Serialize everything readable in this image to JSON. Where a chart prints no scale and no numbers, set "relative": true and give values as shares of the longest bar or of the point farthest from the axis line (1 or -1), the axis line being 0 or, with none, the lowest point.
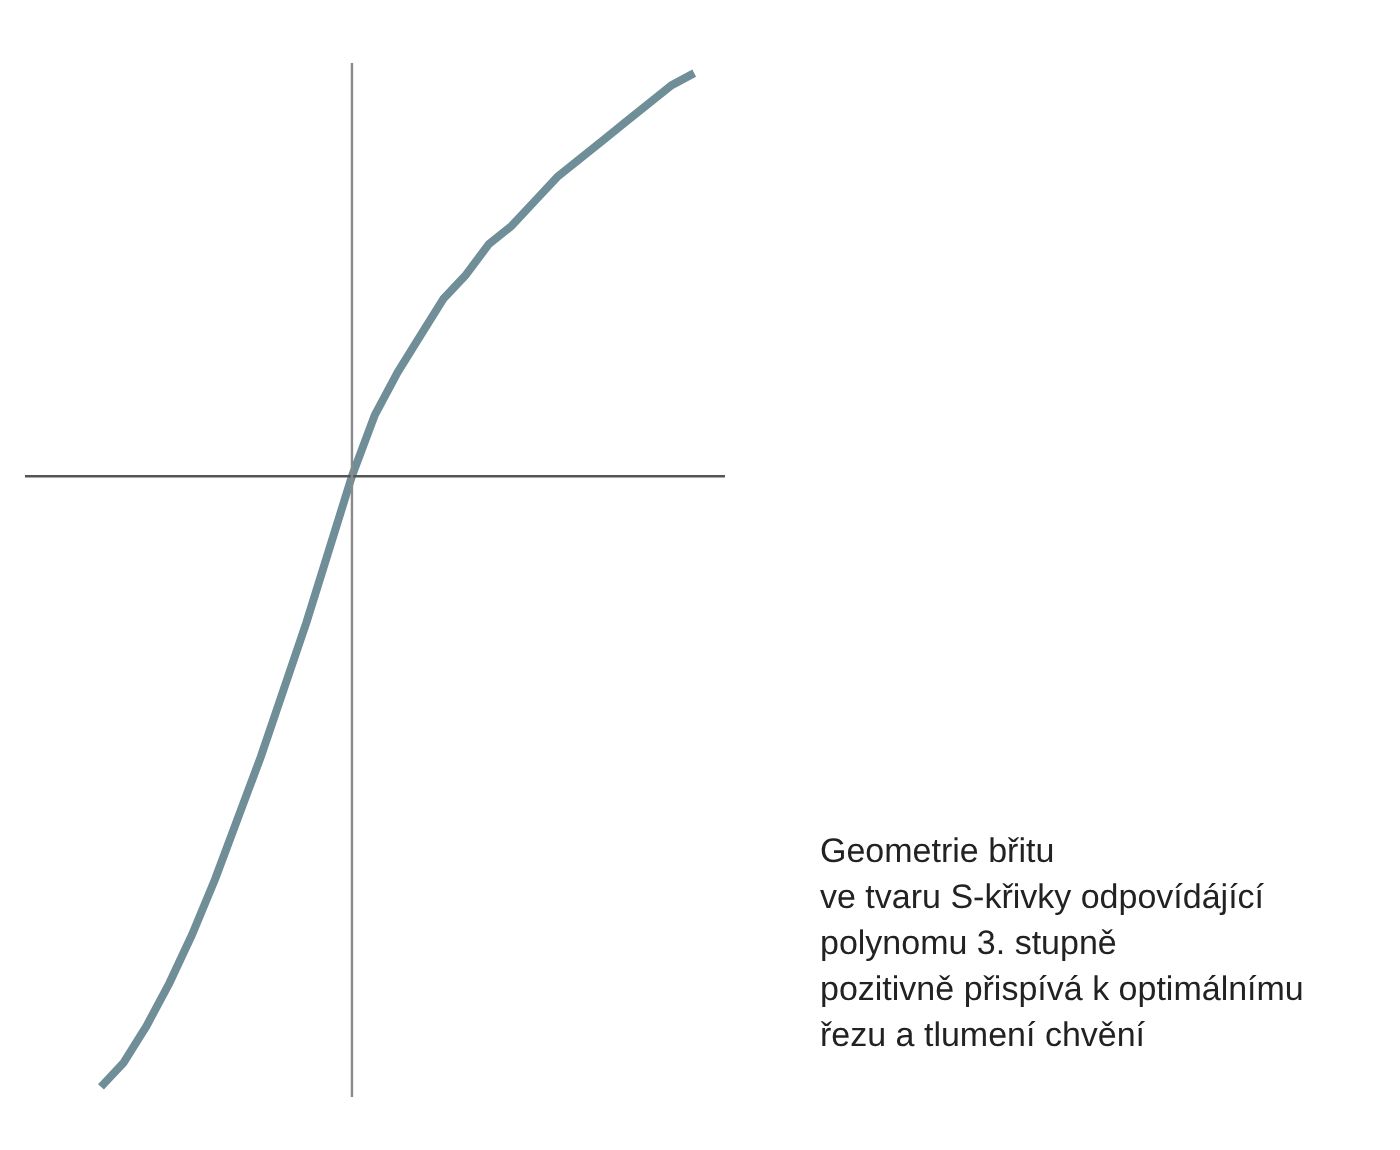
{
  "chart_data": {
    "type": "line",
    "relative": true,
    "line_style": "solid",
    "color": "#6f8e98",
    "categories": [
      null,
      null,
      null,
      null,
      null,
      null,
      null,
      null,
      null,
      null,
      null,
      null,
      null,
      null,
      null,
      null,
      null,
      null,
      null,
      null,
      null,
      null,
      null,
      null,
      null,
      null,
      null
    ],
    "values": [
      -1,
      -0.96,
      -0.9,
      -0.83,
      -0.75,
      -0.66,
      -0.56,
      -0.46,
      -0.35,
      -0.24,
      -0.12,
      0,
      0.1,
      0.17,
      0.23,
      0.29,
      0.33,
      0.38,
      0.41,
      0.45,
      0.49,
      0.52,
      0.55,
      0.58,
      0.61,
      0.64,
      0.66
    ],
    "annotations": [
      "Geometrie břitu\nve tvaru S-křivky odpovídájící\npolynomu 3. stupně\npozitivně přispívá k optimálnímu\nřezu a tlumení chvění"
    ]
  }
}
